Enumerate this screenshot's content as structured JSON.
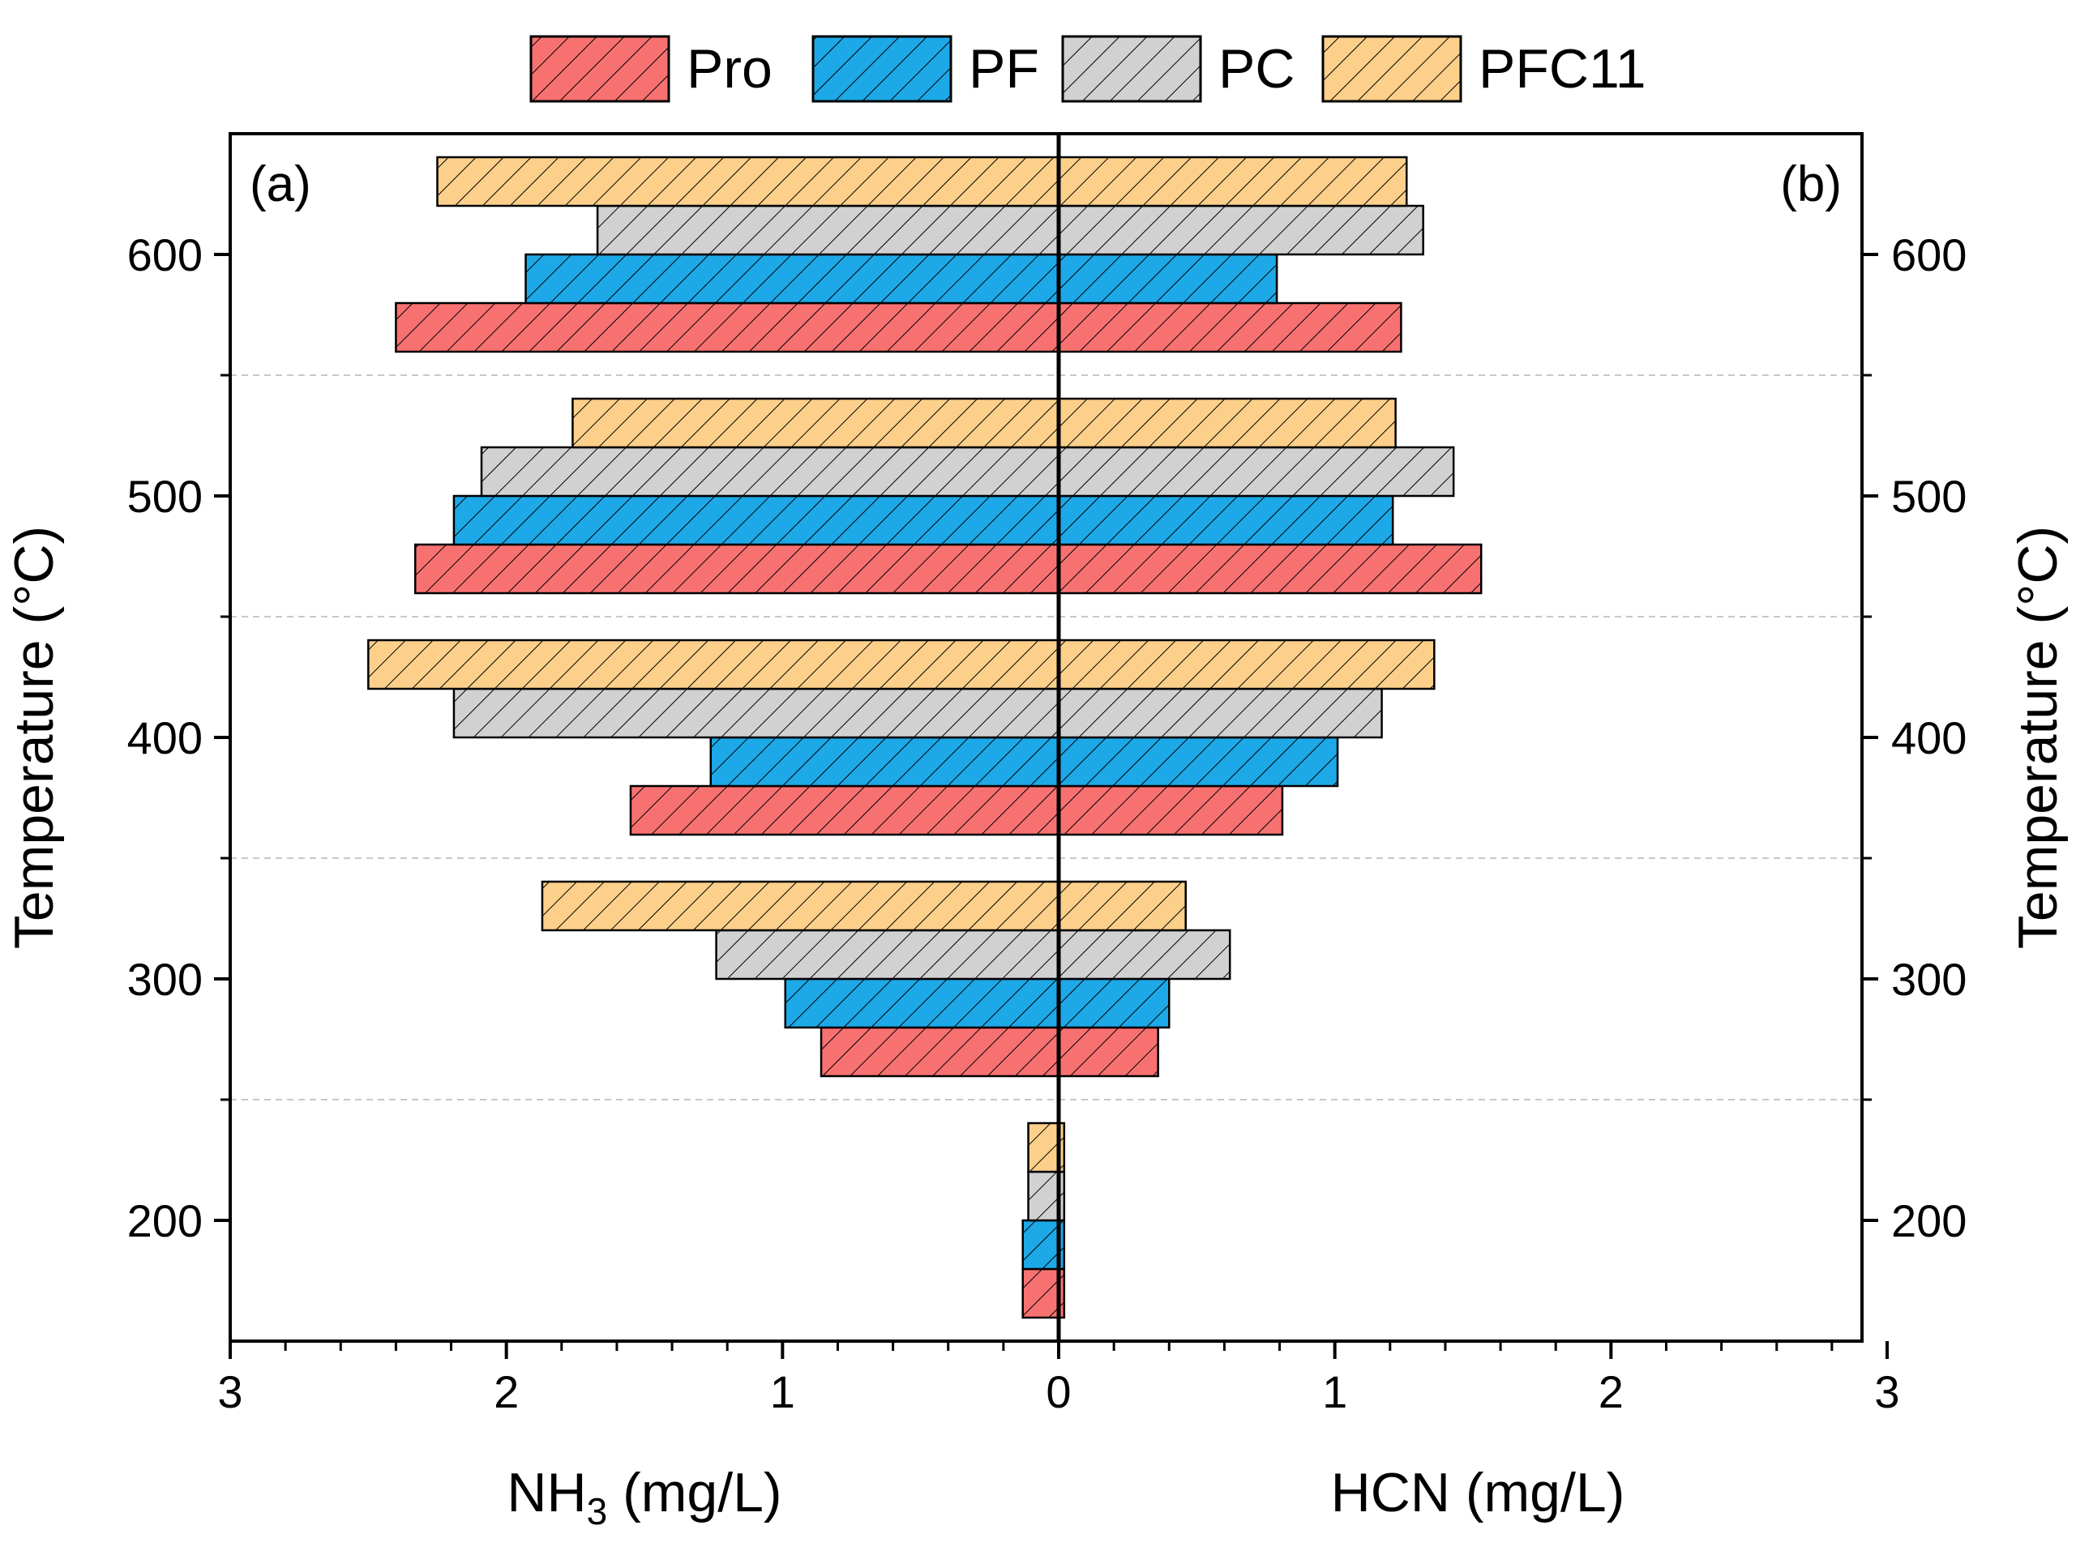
{
  "chart_data": {
    "type": "bar",
    "orientation": "horizontal-butterfly",
    "legend": {
      "placement": "top",
      "entries": [
        "Pro",
        "PF",
        "PC",
        "PFC11"
      ]
    },
    "series": [
      {
        "name": "Pro",
        "color": "#f87171",
        "nh3": [
          0.13,
          0.86,
          1.55,
          2.33,
          2.4
        ],
        "hcn": [
          0.02,
          0.36,
          0.81,
          1.53,
          1.24
        ]
      },
      {
        "name": "PF",
        "color": "#1da8e8",
        "nh3": [
          0.13,
          0.99,
          1.26,
          2.19,
          1.93
        ],
        "hcn": [
          0.02,
          0.4,
          1.01,
          1.21,
          0.79
        ]
      },
      {
        "name": "PC",
        "color": "#d1d1d1",
        "nh3": [
          0.11,
          1.24,
          2.19,
          2.09,
          1.67
        ],
        "hcn": [
          0.02,
          0.62,
          1.17,
          1.43,
          1.32
        ]
      },
      {
        "name": "PFC11",
        "color": "#fcd08a",
        "nh3": [
          0.11,
          1.87,
          2.5,
          1.76,
          2.25
        ],
        "hcn": [
          0.02,
          0.46,
          1.36,
          1.22,
          1.26
        ]
      }
    ],
    "temperatures": [
      200,
      300,
      400,
      500,
      600
    ],
    "ylim": [
      150,
      650
    ],
    "y_ticks": [
      "200",
      "300",
      "400",
      "500",
      "600"
    ],
    "x_range": [
      0,
      3
    ],
    "x_ticks_left": [
      "3",
      "2",
      "1",
      "0"
    ],
    "x_ticks_right": [
      "1",
      "2",
      "3"
    ],
    "left_ylabel": "Temperature (°C)",
    "right_ylabel": "Temperature (°C)",
    "xlabel_left": {
      "main": "NH",
      "sub": "3",
      "unit": " (mg/L)"
    },
    "xlabel_right": "HCN (mg/L)",
    "panel_labels": {
      "left": "(a)",
      "right": "(b)"
    },
    "grid": "dashed separators between temperature groups"
  }
}
